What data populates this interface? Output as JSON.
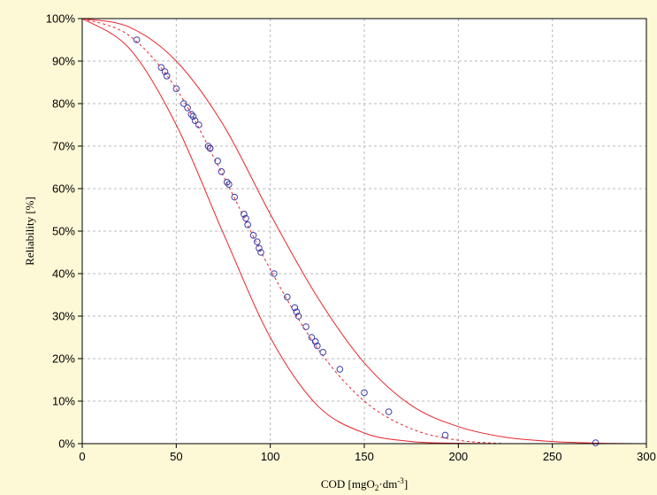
{
  "colors": {
    "background": "#fdf8d6",
    "plot_background": "#ffffff",
    "grid": "#b8b8b8",
    "confidence_band": "#e8242c",
    "fit_line": "#e8242c",
    "points": "#3b3ba8"
  },
  "chart_data": {
    "type": "scatter",
    "title": "",
    "xlabel": {
      "prefix": "COD [mgO",
      "sub": "2",
      "mid": "·dm",
      "sup": "-3",
      "suffix": "]"
    },
    "ylabel": "Reliability [%]",
    "xlim": [
      0,
      300
    ],
    "ylim": [
      0,
      100
    ],
    "x_ticks": [
      0,
      50,
      100,
      150,
      200,
      250,
      300
    ],
    "x_tick_labels": [
      "0",
      "50",
      "100",
      "150",
      "200",
      "250",
      "300"
    ],
    "y_ticks": [
      0,
      10,
      20,
      30,
      40,
      50,
      60,
      70,
      80,
      90,
      100
    ],
    "y_tick_labels": [
      "0%",
      "10%",
      "20%",
      "30%",
      "40%",
      "50%",
      "60%",
      "70%",
      "80%",
      "90%",
      "100%"
    ],
    "grid": true,
    "legend": "none",
    "series": [
      {
        "style": "scatter-open-circle",
        "x": [
          29,
          42,
          44,
          45,
          50,
          54,
          56,
          58,
          59,
          60,
          62,
          67,
          68,
          68,
          72,
          74,
          77,
          78,
          81,
          86,
          87,
          88,
          91,
          93,
          94,
          95,
          102,
          109,
          113,
          114,
          115,
          119,
          122,
          124,
          125,
          128,
          137,
          150,
          163,
          193,
          273
        ],
        "y": [
          95,
          88.5,
          87.5,
          86.5,
          83.5,
          80,
          79,
          77.5,
          77,
          76,
          75,
          70,
          69.5,
          69.5,
          66.5,
          64,
          61.5,
          61,
          58,
          54,
          53,
          51.5,
          49,
          47.5,
          46,
          45,
          40,
          34.5,
          32,
          31,
          30,
          27.5,
          25,
          24,
          23,
          21.5,
          17.5,
          12,
          7.5,
          2,
          0.2
        ]
      },
      {
        "style": "dashed-fit",
        "x": [
          0,
          25,
          50,
          75,
          100,
          125,
          150,
          175,
          200,
          225
        ],
        "y": [
          100,
          96,
          83.5,
          63,
          41,
          22.5,
          10,
          3.5,
          0.8,
          0
        ]
      },
      {
        "style": "band-upper",
        "x": [
          0,
          25,
          50,
          75,
          100,
          125,
          150,
          175,
          200,
          225,
          250,
          275,
          300
        ],
        "y": [
          100,
          98,
          90,
          75,
          54,
          34.5,
          19,
          9,
          4,
          1.5,
          0.5,
          0.1,
          0
        ]
      },
      {
        "style": "band-lower",
        "x": [
          0,
          25,
          50,
          75,
          100,
          125,
          150,
          175,
          200,
          225
        ],
        "y": [
          100,
          93,
          75,
          49.5,
          25,
          9,
          2.5,
          0.5,
          0.1,
          0
        ]
      }
    ]
  }
}
